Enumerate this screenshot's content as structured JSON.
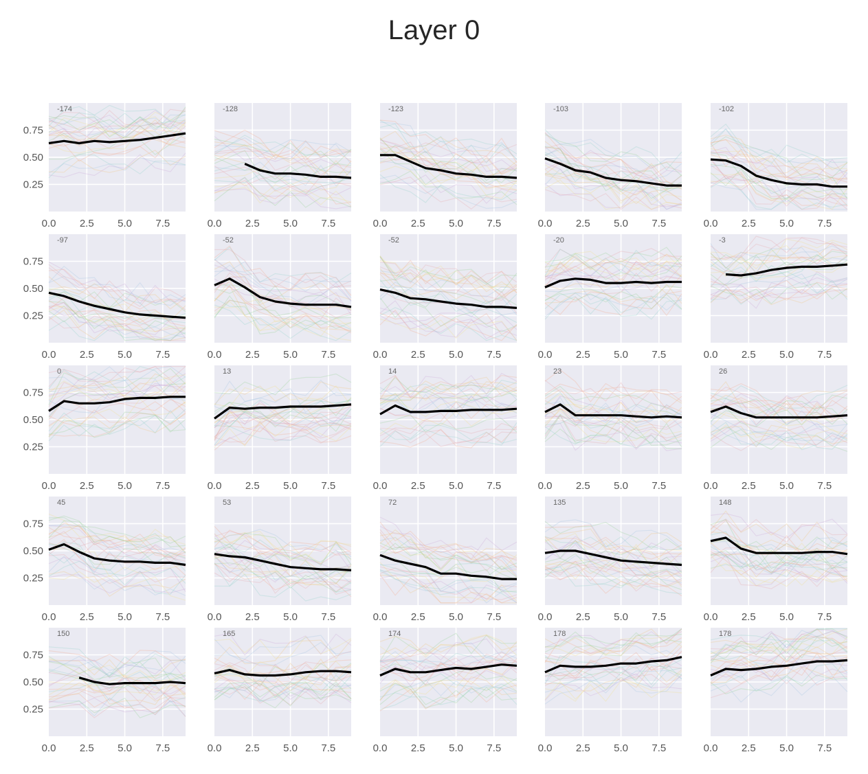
{
  "title": "Layer 0",
  "palette": [
    "#e5a0a8",
    "#8fd08f",
    "#f2c27a",
    "#9ec3e2",
    "#c9a0d8",
    "#f0e08a",
    "#8dd0c8",
    "#f4a58a"
  ],
  "chart_data": [
    {
      "type": "line",
      "label": "-174",
      "x": [
        0,
        1,
        2,
        3,
        4,
        5,
        6,
        7,
        8,
        9
      ],
      "mean": [
        0.63,
        0.65,
        0.63,
        0.65,
        0.64,
        0.65,
        0.66,
        0.68,
        0.7,
        0.72
      ],
      "xlim": [
        0,
        9
      ],
      "ylim": [
        0,
        1
      ],
      "xticks": [
        "0.0",
        "2.5",
        "5.0",
        "7.5"
      ],
      "yticks": [
        "0.75",
        "0.50",
        "0.25"
      ],
      "grid": true
    },
    {
      "type": "line",
      "label": "-128",
      "x": [
        2,
        3,
        4,
        5,
        6,
        7,
        8,
        9
      ],
      "mean": [
        0.44,
        0.38,
        0.35,
        0.35,
        0.34,
        0.32,
        0.32,
        0.31
      ],
      "xlim": [
        0,
        9
      ],
      "ylim": [
        0,
        1
      ],
      "xticks": [
        "0.0",
        "2.5",
        "5.0",
        "7.5"
      ],
      "yticks": [],
      "grid": true
    },
    {
      "type": "line",
      "label": "-123",
      "x": [
        0,
        1,
        2,
        3,
        4,
        5,
        6,
        7,
        8,
        9
      ],
      "mean": [
        0.52,
        0.52,
        0.46,
        0.4,
        0.38,
        0.35,
        0.34,
        0.32,
        0.32,
        0.31
      ],
      "xlim": [
        0,
        9
      ],
      "ylim": [
        0,
        1
      ],
      "xticks": [
        "0.0",
        "2.5",
        "5.0",
        "7.5"
      ],
      "yticks": [],
      "grid": true
    },
    {
      "type": "line",
      "label": "-103",
      "x": [
        0,
        1,
        2,
        3,
        4,
        5,
        6,
        7,
        8,
        9
      ],
      "mean": [
        0.49,
        0.44,
        0.38,
        0.36,
        0.31,
        0.29,
        0.28,
        0.26,
        0.24,
        0.24
      ],
      "xlim": [
        0,
        9
      ],
      "ylim": [
        0,
        1
      ],
      "xticks": [
        "0.0",
        "2.5",
        "5.0",
        "7.5"
      ],
      "yticks": [],
      "grid": true
    },
    {
      "type": "line",
      "label": "-102",
      "x": [
        0,
        1,
        2,
        3,
        4,
        5,
        6,
        7,
        8,
        9
      ],
      "mean": [
        0.48,
        0.47,
        0.42,
        0.33,
        0.29,
        0.26,
        0.25,
        0.25,
        0.23,
        0.23
      ],
      "xlim": [
        0,
        9
      ],
      "ylim": [
        0,
        1
      ],
      "xticks": [
        "0.0",
        "2.5",
        "5.0",
        "7.5"
      ],
      "yticks": [],
      "grid": true
    },
    {
      "type": "line",
      "label": "-97",
      "x": [
        0,
        1,
        2,
        3,
        4,
        5,
        6,
        7,
        8,
        9
      ],
      "mean": [
        0.46,
        0.43,
        0.38,
        0.34,
        0.31,
        0.28,
        0.26,
        0.25,
        0.24,
        0.23
      ],
      "xlim": [
        0,
        9
      ],
      "ylim": [
        0,
        1
      ],
      "xticks": [
        "0.0",
        "2.5",
        "5.0",
        "7.5"
      ],
      "yticks": [
        "0.75",
        "0.50",
        "0.25"
      ],
      "grid": true
    },
    {
      "type": "line",
      "label": "-52",
      "x": [
        0,
        1,
        2,
        3,
        4,
        5,
        6,
        7,
        8,
        9
      ],
      "mean": [
        0.53,
        0.59,
        0.51,
        0.42,
        0.38,
        0.36,
        0.35,
        0.35,
        0.35,
        0.33
      ],
      "xlim": [
        0,
        9
      ],
      "ylim": [
        0,
        1
      ],
      "xticks": [
        "0.0",
        "2.5",
        "5.0",
        "7.5"
      ],
      "yticks": [],
      "grid": true
    },
    {
      "type": "line",
      "label": "-52",
      "x": [
        0,
        1,
        2,
        3,
        4,
        5,
        6,
        7,
        8,
        9
      ],
      "mean": [
        0.49,
        0.46,
        0.41,
        0.4,
        0.38,
        0.36,
        0.35,
        0.33,
        0.33,
        0.32
      ],
      "xlim": [
        0,
        9
      ],
      "ylim": [
        0,
        1
      ],
      "xticks": [
        "0.0",
        "2.5",
        "5.0",
        "7.5"
      ],
      "yticks": [],
      "grid": true
    },
    {
      "type": "line",
      "label": "-20",
      "x": [
        0,
        1,
        2,
        3,
        4,
        5,
        6,
        7,
        8,
        9
      ],
      "mean": [
        0.51,
        0.57,
        0.59,
        0.58,
        0.55,
        0.55,
        0.56,
        0.55,
        0.56,
        0.56
      ],
      "xlim": [
        0,
        9
      ],
      "ylim": [
        0,
        1
      ],
      "xticks": [
        "0.0",
        "2.5",
        "5.0",
        "7.5"
      ],
      "yticks": [],
      "grid": true
    },
    {
      "type": "line",
      "label": "-3",
      "x": [
        1,
        2,
        3,
        4,
        5,
        6,
        7,
        8,
        9
      ],
      "mean": [
        0.63,
        0.62,
        0.64,
        0.67,
        0.69,
        0.7,
        0.7,
        0.71,
        0.72
      ],
      "xlim": [
        0,
        9
      ],
      "ylim": [
        0,
        1
      ],
      "xticks": [
        "0.0",
        "2.5",
        "5.0",
        "7.5"
      ],
      "yticks": [],
      "grid": true
    },
    {
      "type": "line",
      "label": "0",
      "x": [
        0,
        1,
        2,
        3,
        4,
        5,
        6,
        7,
        8,
        9
      ],
      "mean": [
        0.58,
        0.67,
        0.65,
        0.65,
        0.66,
        0.69,
        0.7,
        0.7,
        0.71,
        0.71
      ],
      "xlim": [
        0,
        9
      ],
      "ylim": [
        0,
        1
      ],
      "xticks": [
        "0.0",
        "2.5",
        "5.0",
        "7.5"
      ],
      "yticks": [
        "0.75",
        "0.50",
        "0.25"
      ],
      "grid": true
    },
    {
      "type": "line",
      "label": "13",
      "x": [
        0,
        1,
        2,
        3,
        4,
        5,
        6,
        7,
        8,
        9
      ],
      "mean": [
        0.51,
        0.61,
        0.6,
        0.61,
        0.61,
        0.62,
        0.62,
        0.62,
        0.63,
        0.64
      ],
      "xlim": [
        0,
        9
      ],
      "ylim": [
        0,
        1
      ],
      "xticks": [
        "0.0",
        "2.5",
        "5.0",
        "7.5"
      ],
      "yticks": [],
      "grid": true
    },
    {
      "type": "line",
      "label": "14",
      "x": [
        0,
        1,
        2,
        3,
        4,
        5,
        6,
        7,
        8,
        9
      ],
      "mean": [
        0.55,
        0.63,
        0.57,
        0.57,
        0.58,
        0.58,
        0.59,
        0.59,
        0.59,
        0.6
      ],
      "xlim": [
        0,
        9
      ],
      "ylim": [
        0,
        1
      ],
      "xticks": [
        "0.0",
        "2.5",
        "5.0",
        "7.5"
      ],
      "yticks": [],
      "grid": true
    },
    {
      "type": "line",
      "label": "23",
      "x": [
        0,
        1,
        2,
        3,
        4,
        5,
        6,
        7,
        8,
        9
      ],
      "mean": [
        0.57,
        0.64,
        0.54,
        0.54,
        0.54,
        0.54,
        0.53,
        0.52,
        0.53,
        0.52
      ],
      "xlim": [
        0,
        9
      ],
      "ylim": [
        0,
        1
      ],
      "xticks": [
        "0.0",
        "2.5",
        "5.0",
        "7.5"
      ],
      "yticks": [],
      "grid": true
    },
    {
      "type": "line",
      "label": "26",
      "x": [
        0,
        1,
        2,
        3,
        4,
        5,
        6,
        7,
        8,
        9
      ],
      "mean": [
        0.57,
        0.62,
        0.56,
        0.52,
        0.52,
        0.52,
        0.52,
        0.52,
        0.53,
        0.54
      ],
      "xlim": [
        0,
        9
      ],
      "ylim": [
        0,
        1
      ],
      "xticks": [
        "0.0",
        "2.5",
        "5.0",
        "7.5"
      ],
      "yticks": [],
      "grid": true
    },
    {
      "type": "line",
      "label": "45",
      "x": [
        0,
        1,
        2,
        3,
        4,
        5,
        6,
        7,
        8,
        9
      ],
      "mean": [
        0.51,
        0.56,
        0.49,
        0.43,
        0.41,
        0.4,
        0.4,
        0.39,
        0.39,
        0.37
      ],
      "xlim": [
        0,
        9
      ],
      "ylim": [
        0,
        1
      ],
      "xticks": [
        "0.0",
        "2.5",
        "5.0",
        "7.5"
      ],
      "yticks": [
        "0.75",
        "0.50",
        "0.25"
      ],
      "grid": true
    },
    {
      "type": "line",
      "label": "53",
      "x": [
        0,
        1,
        2,
        3,
        4,
        5,
        6,
        7,
        8,
        9
      ],
      "mean": [
        0.47,
        0.45,
        0.44,
        0.41,
        0.38,
        0.35,
        0.34,
        0.33,
        0.33,
        0.32
      ],
      "xlim": [
        0,
        9
      ],
      "ylim": [
        0,
        1
      ],
      "xticks": [
        "0.0",
        "2.5",
        "5.0",
        "7.5"
      ],
      "yticks": [],
      "grid": true
    },
    {
      "type": "line",
      "label": "72",
      "x": [
        0,
        1,
        2,
        3,
        4,
        5,
        6,
        7,
        8,
        9
      ],
      "mean": [
        0.46,
        0.41,
        0.38,
        0.35,
        0.29,
        0.29,
        0.27,
        0.26,
        0.24,
        0.24
      ],
      "xlim": [
        0,
        9
      ],
      "ylim": [
        0,
        1
      ],
      "xticks": [
        "0.0",
        "2.5",
        "5.0",
        "7.5"
      ],
      "yticks": [],
      "grid": true
    },
    {
      "type": "line",
      "label": "135",
      "x": [
        0,
        1,
        2,
        3,
        4,
        5,
        6,
        7,
        8,
        9
      ],
      "mean": [
        0.48,
        0.5,
        0.5,
        0.47,
        0.44,
        0.41,
        0.4,
        0.39,
        0.38,
        0.37
      ],
      "xlim": [
        0,
        9
      ],
      "ylim": [
        0,
        1
      ],
      "xticks": [
        "0.0",
        "2.5",
        "5.0",
        "7.5"
      ],
      "yticks": [],
      "grid": true
    },
    {
      "type": "line",
      "label": "148",
      "x": [
        0,
        1,
        2,
        3,
        4,
        5,
        6,
        7,
        8,
        9
      ],
      "mean": [
        0.59,
        0.62,
        0.52,
        0.48,
        0.48,
        0.48,
        0.48,
        0.49,
        0.49,
        0.47
      ],
      "xlim": [
        0,
        9
      ],
      "ylim": [
        0,
        1
      ],
      "xticks": [
        "0.0",
        "2.5",
        "5.0",
        "7.5"
      ],
      "yticks": [],
      "grid": true
    },
    {
      "type": "line",
      "label": "150",
      "x": [
        2,
        3,
        4,
        5,
        6,
        7,
        8,
        9
      ],
      "mean": [
        0.54,
        0.5,
        0.48,
        0.49,
        0.49,
        0.49,
        0.5,
        0.49
      ],
      "xlim": [
        0,
        9
      ],
      "ylim": [
        0,
        1
      ],
      "xticks": [
        "0.0",
        "2.5",
        "5.0",
        "7.5"
      ],
      "yticks": [
        "0.75",
        "0.50",
        "0.25"
      ],
      "grid": true
    },
    {
      "type": "line",
      "label": "165",
      "x": [
        0,
        1,
        2,
        3,
        4,
        5,
        6,
        7,
        8,
        9
      ],
      "mean": [
        0.58,
        0.61,
        0.57,
        0.56,
        0.56,
        0.57,
        0.59,
        0.6,
        0.6,
        0.59
      ],
      "xlim": [
        0,
        9
      ],
      "ylim": [
        0,
        1
      ],
      "xticks": [
        "0.0",
        "2.5",
        "5.0",
        "7.5"
      ],
      "yticks": [],
      "grid": true
    },
    {
      "type": "line",
      "label": "174",
      "x": [
        0,
        1,
        2,
        3,
        4,
        5,
        6,
        7,
        8,
        9
      ],
      "mean": [
        0.56,
        0.62,
        0.59,
        0.59,
        0.61,
        0.63,
        0.62,
        0.64,
        0.66,
        0.65
      ],
      "xlim": [
        0,
        9
      ],
      "ylim": [
        0,
        1
      ],
      "xticks": [
        "0.0",
        "2.5",
        "5.0",
        "7.5"
      ],
      "yticks": [],
      "grid": true
    },
    {
      "type": "line",
      "label": "178",
      "x": [
        0,
        1,
        2,
        3,
        4,
        5,
        6,
        7,
        8,
        9
      ],
      "mean": [
        0.59,
        0.65,
        0.64,
        0.64,
        0.65,
        0.67,
        0.67,
        0.69,
        0.7,
        0.73
      ],
      "xlim": [
        0,
        9
      ],
      "ylim": [
        0,
        1
      ],
      "xticks": [
        "0.0",
        "2.5",
        "5.0",
        "7.5"
      ],
      "yticks": [],
      "grid": true
    },
    {
      "type": "line",
      "label": "178",
      "x": [
        0,
        1,
        2,
        3,
        4,
        5,
        6,
        7,
        8,
        9
      ],
      "mean": [
        0.56,
        0.62,
        0.61,
        0.62,
        0.64,
        0.65,
        0.67,
        0.69,
        0.69,
        0.7
      ],
      "xlim": [
        0,
        9
      ],
      "ylim": [
        0,
        1
      ],
      "xticks": [
        "0.0",
        "2.5",
        "5.0",
        "7.5"
      ],
      "yticks": [],
      "grid": true
    }
  ]
}
